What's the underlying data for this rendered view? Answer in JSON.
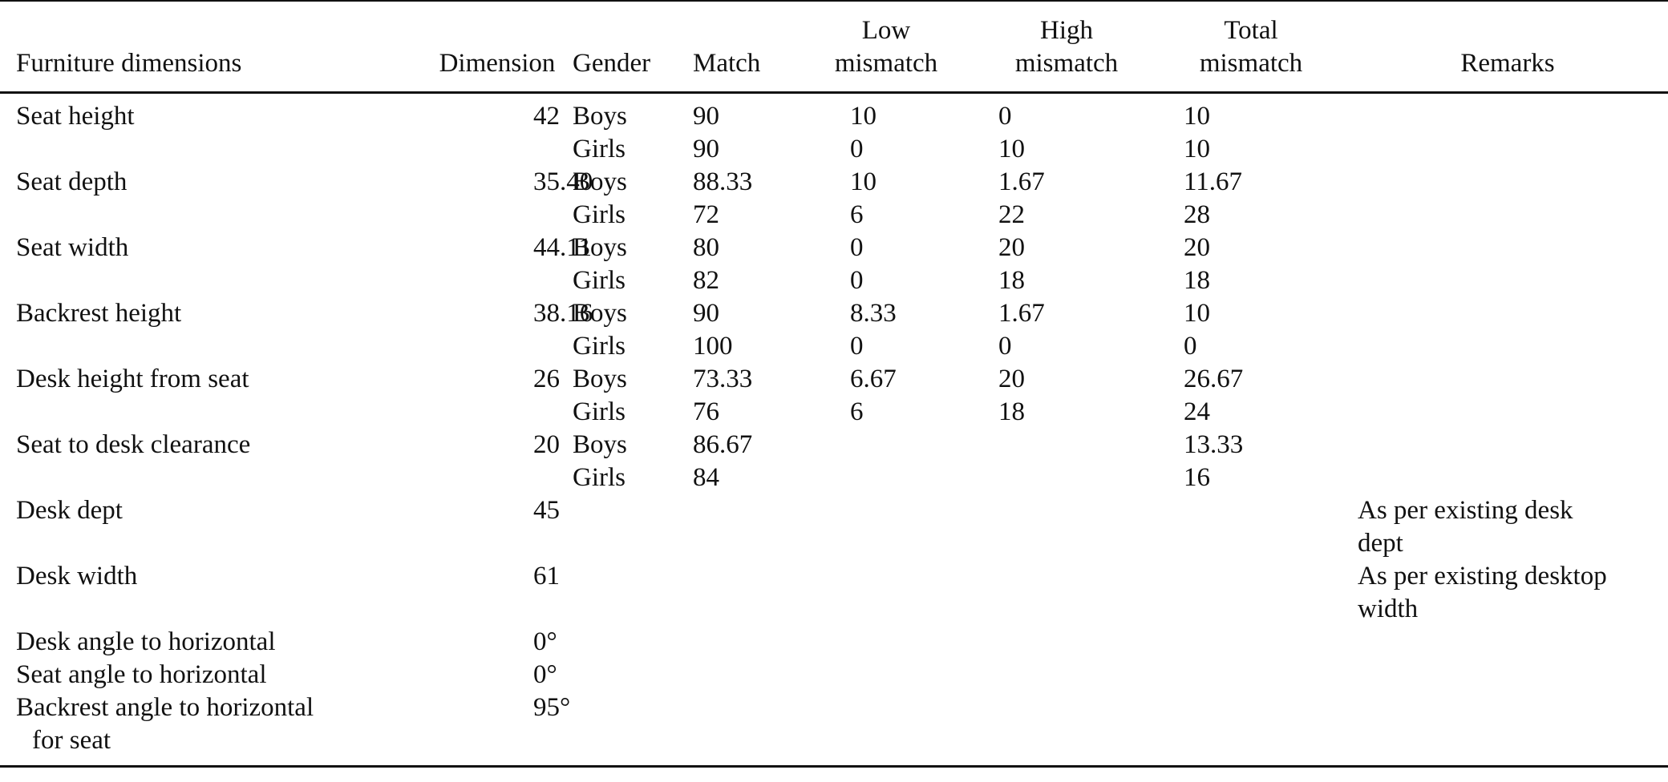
{
  "table": {
    "headers": {
      "furniture_dimensions": "Furniture dimensions",
      "dimension": "Dimension",
      "gender": "Gender",
      "match": "Match",
      "low_mismatch": "Low\nmismatch",
      "high_mismatch": "High\nmismatch",
      "total_mismatch": "Total\nmismatch",
      "remarks": "Remarks"
    },
    "rows": [
      {
        "name": "Seat height",
        "dimension": "42",
        "boys": {
          "match": "90",
          "low": "10",
          "high": "0",
          "total": "10"
        },
        "girls": {
          "match": "90",
          "low": "0",
          "high": "10",
          "total": "10"
        }
      },
      {
        "name": "Seat depth",
        "dimension": "35.40",
        "boys": {
          "match": "88.33",
          "low": "10",
          "high": "1.67",
          "total": "11.67"
        },
        "girls": {
          "match": "72",
          "low": "6",
          "high": "22",
          "total": "28"
        }
      },
      {
        "name": "Seat width",
        "dimension": "44.11",
        "boys": {
          "match": "80",
          "low": "0",
          "high": "20",
          "total": "20"
        },
        "girls": {
          "match": "82",
          "low": "0",
          "high": "18",
          "total": "18"
        }
      },
      {
        "name": "Backrest height",
        "dimension": "38.16",
        "boys": {
          "match": "90",
          "low": "8.33",
          "high": "1.67",
          "total": "10"
        },
        "girls": {
          "match": "100",
          "low": "0",
          "high": "0",
          "total": "0"
        }
      },
      {
        "name": "Desk height from seat",
        "dimension": "26",
        "boys": {
          "match": "73.33",
          "low": "6.67",
          "high": "20",
          "total": "26.67"
        },
        "girls": {
          "match": "76",
          "low": "6",
          "high": "18",
          "total": "24"
        }
      },
      {
        "name": "Seat to desk clearance",
        "dimension": "20",
        "boys": {
          "match": "86.67",
          "low": "",
          "high": "",
          "total": "13.33"
        },
        "girls": {
          "match": "84",
          "low": "",
          "high": "",
          "total": "16"
        }
      }
    ],
    "gender_labels": {
      "boys": "Boys",
      "girls": "Girls"
    },
    "extra_rows": [
      {
        "name": "Desk dept",
        "dimension": "45",
        "remarks": "As per existing desk\ndept"
      },
      {
        "name": "Desk width",
        "dimension": "61",
        "remarks": "As per existing desktop\nwidth"
      },
      {
        "name": "Desk angle to horizontal",
        "dimension": "0°",
        "remarks": ""
      },
      {
        "name": "Seat angle to horizontal",
        "dimension": "0°",
        "remarks": ""
      },
      {
        "name": "Backrest angle to horizontal",
        "name_cont": "for seat",
        "dimension": "95°",
        "remarks": ""
      }
    ]
  }
}
